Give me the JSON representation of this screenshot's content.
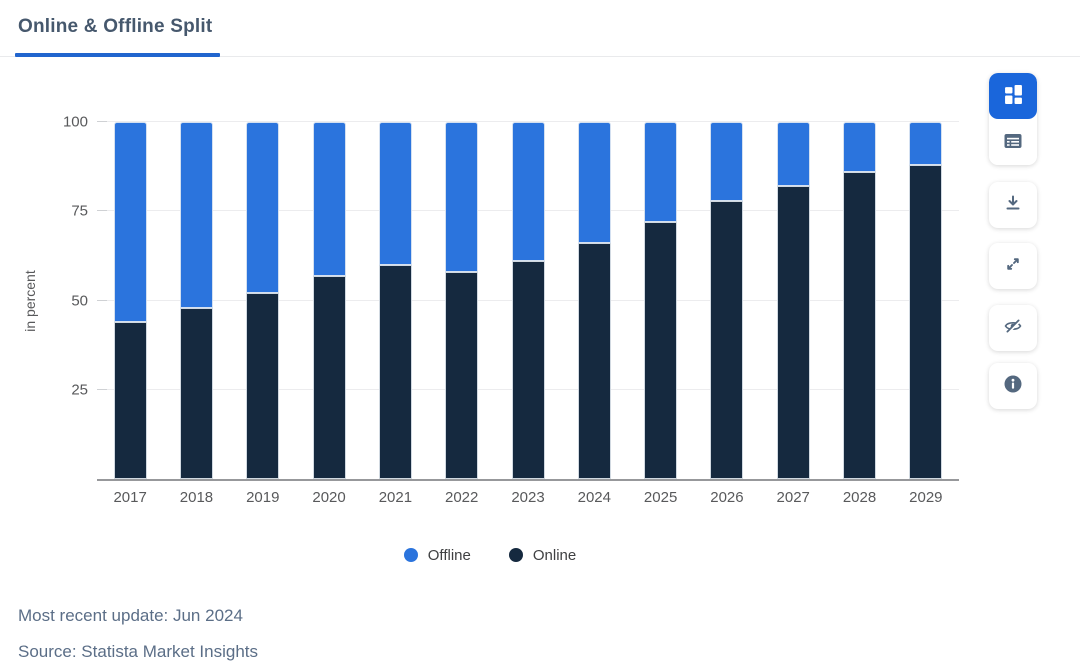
{
  "header": {
    "title": "Online & Offline Split"
  },
  "chart_data": {
    "type": "bar",
    "stacked": true,
    "title": "Online & Offline Split",
    "categories": [
      "2017",
      "2018",
      "2019",
      "2020",
      "2021",
      "2022",
      "2023",
      "2024",
      "2025",
      "2026",
      "2027",
      "2028",
      "2029"
    ],
    "series": [
      {
        "name": "Offline",
        "color": "#2b74dd",
        "values": [
          56,
          52,
          48,
          43,
          40,
          42,
          39,
          34,
          28,
          22,
          18,
          14,
          12
        ]
      },
      {
        "name": "Online",
        "color": "#15293f",
        "values": [
          44,
          48,
          52,
          57,
          60,
          58,
          61,
          66,
          72,
          78,
          82,
          86,
          88
        ]
      }
    ],
    "stack_order_bottom_to_top": [
      "Online",
      "Offline"
    ],
    "xlabel": "",
    "ylabel": "in percent",
    "ylim": [
      0,
      100
    ],
    "yticks": [
      25,
      50,
      75,
      100
    ],
    "grid": true,
    "legend_position": "bottom"
  },
  "toolbar": {
    "active_color": "#1a66db",
    "icon_color": "#54687f",
    "icons": [
      "chart-view-icon",
      "table-view-icon",
      "download-icon",
      "fullscreen-icon",
      "hide-icon",
      "info-icon"
    ],
    "active_icon": "chart-view-icon"
  },
  "footer": {
    "updated": "Most recent update: Jun 2024",
    "source": "Source: Statista Market Insights"
  },
  "colors": {
    "accent_blue": "#2165ce",
    "bar_offline": "#2b74dd",
    "bar_online": "#15293f",
    "axis_line": "#97989b",
    "gridline": "#ececee",
    "tick_text": "#58595b",
    "footer_text": "#5b6e87",
    "title_text": "#46586d"
  }
}
